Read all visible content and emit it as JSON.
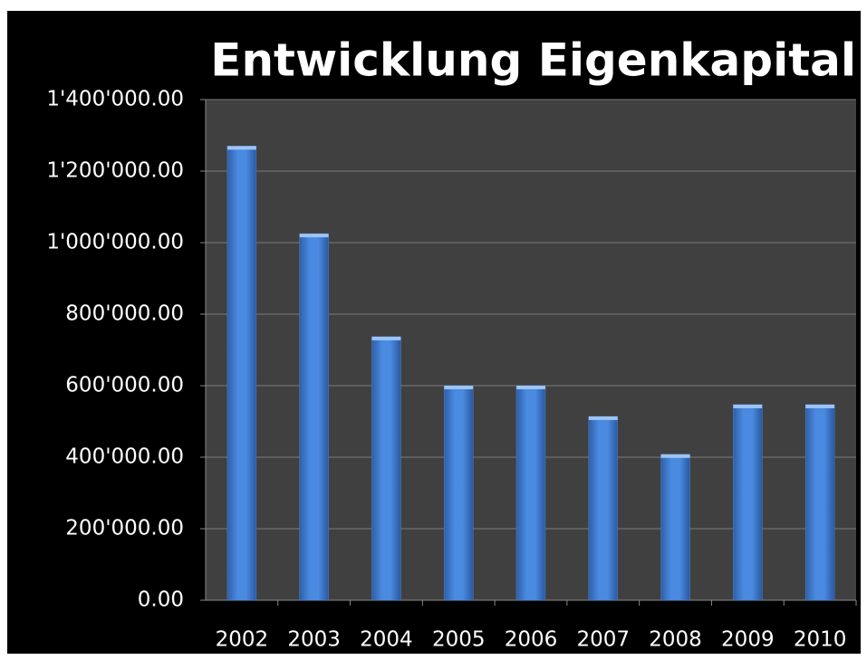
{
  "chart_data": {
    "type": "bar",
    "title": "Entwicklung Eigenkapital",
    "categories": [
      "2002",
      "2003",
      "2004",
      "2005",
      "2006",
      "2007",
      "2008",
      "2009",
      "2010"
    ],
    "values": [
      1270000,
      1025000,
      737000,
      600000,
      600000,
      514000,
      408000,
      547000,
      547000
    ],
    "color": "#4a86d8",
    "ylim": [
      0,
      1400000
    ],
    "yticks": [
      {
        "value": 0,
        "label": "0.00"
      },
      {
        "value": 200000,
        "label": "200'000.00"
      },
      {
        "value": 400000,
        "label": "400'000.00"
      },
      {
        "value": 600000,
        "label": "600'000.00"
      },
      {
        "value": 800000,
        "label": "800'000.00"
      },
      {
        "value": 1000000,
        "label": "1'000'000.00"
      },
      {
        "value": 1200000,
        "label": "1'200'000.00"
      },
      {
        "value": 1400000,
        "label": "1'400'000.00"
      }
    ],
    "grid": true
  }
}
